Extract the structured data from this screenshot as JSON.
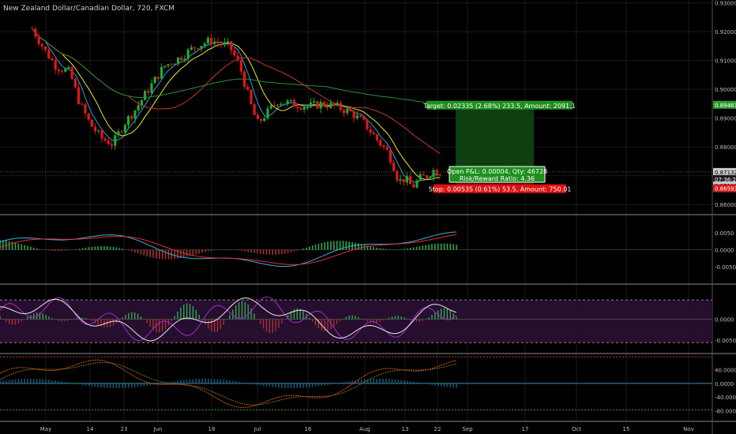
{
  "header": {
    "title": "New Zealand Dollar/Canadian Dollar, 720, FXCM"
  },
  "colors": {
    "background": "#000000",
    "grid": "#1a1a1a",
    "candle_up": "#26a635",
    "candle_down": "#e01818",
    "ma_fast": "#2a9fd6",
    "ma_mid": "#e8e83a",
    "ma_slow": "#c0392b",
    "ma_long": "#2e8b3a",
    "price_badge": "#c8c8c8",
    "target_box": "#1f8f1f",
    "stop_box": "#e01010"
  },
  "main_axis": {
    "labels": [
      "0.93000",
      "0.92000",
      "0.91000",
      "0.90000",
      "0.89000",
      "0.88000",
      "0.87000",
      "0.86000"
    ],
    "ylim": [
      0.8565,
      0.931
    ]
  },
  "price_badges": [
    {
      "value": "0.89463",
      "style": "green"
    },
    {
      "value": "0.87132",
      "style": "gray"
    },
    {
      "value": "07:36:22",
      "style": "dark"
    },
    {
      "value": "0.87128",
      "style": "gray"
    },
    {
      "value": "0.86593",
      "style": "red"
    }
  ],
  "position_tool": {
    "entry": 0.87128,
    "target": 0.89463,
    "stop": 0.86593,
    "target_label": "Target: 0.02335 (2.68%) 233.5, Amount: 2091.1",
    "open_pl_label": "Open P&L: 0.00004, Qty: 46728",
    "rr_label": "Risk/Reward Ratio: 4.36",
    "stop_label": "Stop: 0.00535 (0.61%) 53.5, Amount: 750.01"
  },
  "macd_axis": {
    "labels": [
      "0.0050",
      "0.0000",
      "-0.0050"
    ],
    "ylim": [
      -0.0102,
      0.0102
    ]
  },
  "osc_axis": {
    "labels": [
      "0.0000",
      "-0.0050"
    ],
    "ylim": [
      -0.0082,
      0.0082
    ]
  },
  "stoch_axis": {
    "labels": [
      "40.0000",
      "0.0000",
      "-40.0000",
      "-80.0000"
    ],
    "ylim": [
      -112,
      86
    ]
  },
  "time_axis": {
    "labels": [
      "May",
      "14",
      "23",
      "Jun",
      "18",
      "Jul",
      "16",
      "Aug",
      "13",
      "22",
      "Sep",
      "17",
      "Oct",
      "15",
      "Nov"
    ]
  },
  "chart_data": {
    "type": "candlestick",
    "title": "New Zealand Dollar/Canadian Dollar, 720, FXCM",
    "symbol": "NZDCAD",
    "interval": "720",
    "grid": true,
    "price_range": [
      0.8565,
      0.931
    ],
    "date_ticks": [
      "May",
      "14",
      "23",
      "Jun",
      "18",
      "Jul",
      "16",
      "Aug",
      "13",
      "22",
      "Sep",
      "17",
      "Oct",
      "15",
      "Nov"
    ],
    "anchors": [
      {
        "date": "2018-04-27",
        "close": 0.921
      },
      {
        "date": "2018-05-01",
        "close": 0.913
      },
      {
        "date": "2018-05-04",
        "close": 0.908
      },
      {
        "date": "2018-05-08",
        "close": 0.906
      },
      {
        "date": "2018-05-11",
        "close": 0.895
      },
      {
        "date": "2018-05-14",
        "close": 0.888
      },
      {
        "date": "2018-05-17",
        "close": 0.883
      },
      {
        "date": "2018-05-20",
        "close": 0.881
      },
      {
        "date": "2018-05-23",
        "close": 0.888
      },
      {
        "date": "2018-05-26",
        "close": 0.893
      },
      {
        "date": "2018-05-30",
        "close": 0.901
      },
      {
        "date": "2018-06-03",
        "close": 0.908
      },
      {
        "date": "2018-06-08",
        "close": 0.911
      },
      {
        "date": "2018-06-13",
        "close": 0.915
      },
      {
        "date": "2018-06-18",
        "close": 0.917
      },
      {
        "date": "2018-06-20",
        "close": 0.916
      },
      {
        "date": "2018-06-23",
        "close": 0.915
      },
      {
        "date": "2018-06-26",
        "close": 0.908
      },
      {
        "date": "2018-06-29",
        "close": 0.895
      },
      {
        "date": "2018-07-01",
        "close": 0.888
      },
      {
        "date": "2018-07-04",
        "close": 0.892
      },
      {
        "date": "2018-07-07",
        "close": 0.896
      },
      {
        "date": "2018-07-11",
        "close": 0.895
      },
      {
        "date": "2018-07-16",
        "close": 0.894
      },
      {
        "date": "2018-07-20",
        "close": 0.895
      },
      {
        "date": "2018-07-24",
        "close": 0.894
      },
      {
        "date": "2018-07-28",
        "close": 0.892
      },
      {
        "date": "2018-08-01",
        "close": 0.888
      },
      {
        "date": "2018-08-05",
        "close": 0.882
      },
      {
        "date": "2018-08-08",
        "close": 0.878
      },
      {
        "date": "2018-08-10",
        "close": 0.872
      },
      {
        "date": "2018-08-11",
        "close": 0.868
      },
      {
        "date": "2018-08-13",
        "close": 0.869
      },
      {
        "date": "2018-08-15",
        "close": 0.866
      },
      {
        "date": "2018-08-17",
        "close": 0.869
      },
      {
        "date": "2018-08-19",
        "close": 0.87
      },
      {
        "date": "2018-08-21",
        "close": 0.872
      },
      {
        "date": "2018-08-23",
        "close": 0.8715
      }
    ]
  }
}
